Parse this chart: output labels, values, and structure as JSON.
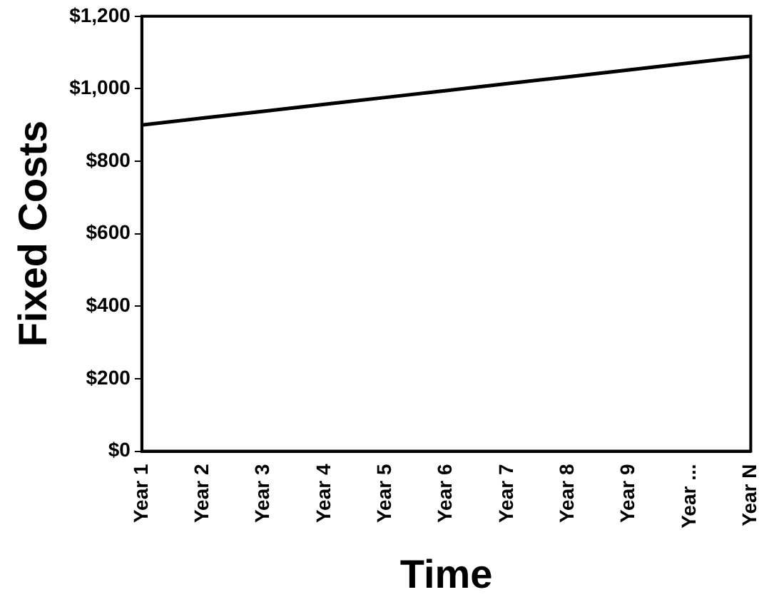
{
  "chart_data": {
    "type": "line",
    "xlabel": "Time",
    "ylabel": "Fixed Costs",
    "categories": [
      "Year 1",
      "Year 2",
      "Year 3",
      "Year 4",
      "Year 5",
      "Year 6",
      "Year 7",
      "Year 8",
      "Year 9",
      "Year ...",
      "Year N"
    ],
    "series": [
      {
        "color": "#000000",
        "values": [
          900,
          919,
          938,
          957,
          976,
          995,
          1014,
          1033,
          1052,
          1071,
          1090
        ]
      }
    ],
    "ylim": [
      0,
      1200
    ],
    "yticks": [
      {
        "value": 0,
        "label": "$0"
      },
      {
        "value": 200,
        "label": "$200"
      },
      {
        "value": 400,
        "label": "$400"
      },
      {
        "value": 600,
        "label": "$600"
      },
      {
        "value": 800,
        "label": "$800"
      },
      {
        "value": 1000,
        "label": "$1,000"
      },
      {
        "value": 1200,
        "label": "$1,200"
      }
    ],
    "grid": false,
    "legend": false,
    "marker": "none",
    "line_style": "solid"
  }
}
